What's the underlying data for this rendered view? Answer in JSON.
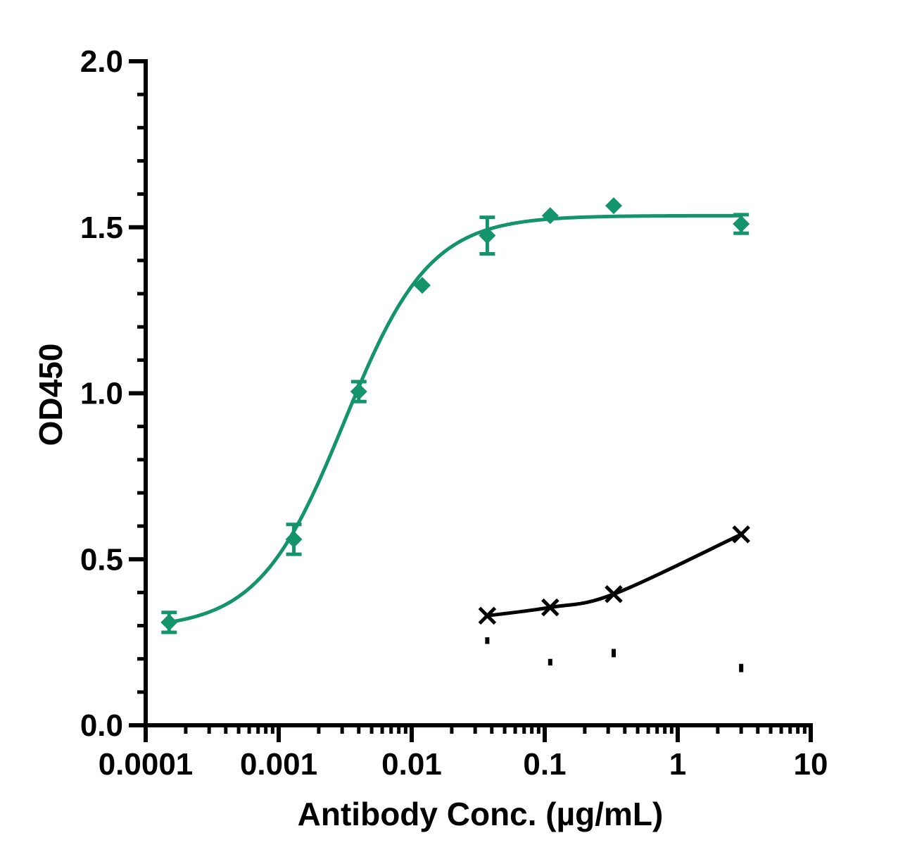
{
  "chart_data": {
    "type": "scatter",
    "title": "",
    "xlabel": "Antibody Conc. (µg/mL)",
    "ylabel": "OD450",
    "x_scale": "log",
    "xlim": [
      0.0001,
      10
    ],
    "ylim": [
      0,
      2.0
    ],
    "x_ticks": [
      0.0001,
      0.001,
      0.01,
      0.1,
      1,
      10
    ],
    "x_tick_labels": [
      "0.0001",
      "0.001",
      "0.01",
      "0.1",
      "1",
      "10"
    ],
    "y_ticks": [
      0,
      0.5,
      1.0,
      1.5,
      2.0
    ],
    "y_tick_labels": [
      "0.0",
      "0.5",
      "1.0",
      "1.5",
      "2.0"
    ],
    "grid": false,
    "legend": "none",
    "series": [
      {
        "color": "#13946b",
        "marker": "diamond",
        "fit": "sigmoidal",
        "x": [
          0.00015,
          0.0013,
          0.004,
          0.012,
          0.037,
          0.11,
          0.33,
          3.0
        ],
        "y": [
          0.31,
          0.56,
          1.005,
          1.325,
          1.475,
          1.535,
          1.565,
          1.51
        ],
        "error": [
          0.03,
          0.045,
          0.03,
          0.01,
          0.055,
          0.01,
          0.01,
          0.028
        ]
      },
      {
        "color": "#000000",
        "marker": "x",
        "fit": "curve",
        "x": [
          0.037,
          0.11,
          0.33,
          3.0
        ],
        "y": [
          0.33,
          0.355,
          0.395,
          0.575
        ],
        "lower_error_marks": [
          [
            0.265,
            0.245
          ],
          [
            0.2,
            0.18
          ],
          [
            0.23,
            0.205
          ],
          [
            0.185,
            0.16
          ]
        ]
      }
    ]
  }
}
